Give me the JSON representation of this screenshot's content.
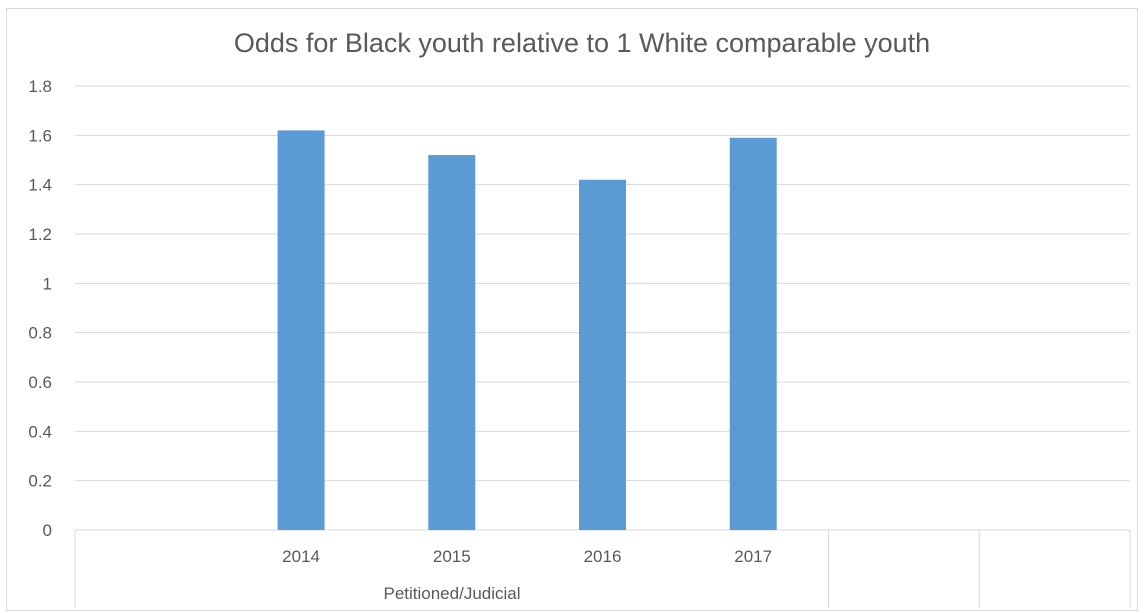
{
  "chart_data": {
    "type": "bar",
    "title": "Odds for Black youth relative to 1 White comparable youth",
    "group_label": "Petitioned/Judicial",
    "categories": [
      "",
      "2014",
      "2015",
      "2016",
      "2017",
      "",
      ""
    ],
    "values": [
      null,
      1.62,
      1.52,
      1.42,
      1.59,
      null,
      null
    ],
    "y_ticks": [
      "0",
      "0.2",
      "0.4",
      "0.6",
      "0.8",
      "1",
      "1.2",
      "1.4",
      "1.6",
      "1.8"
    ],
    "ylim": [
      0,
      1.8
    ],
    "grid": true,
    "legend": "none",
    "bar_color": "#5b9bd5",
    "grid_color": "#d9d9d9"
  }
}
